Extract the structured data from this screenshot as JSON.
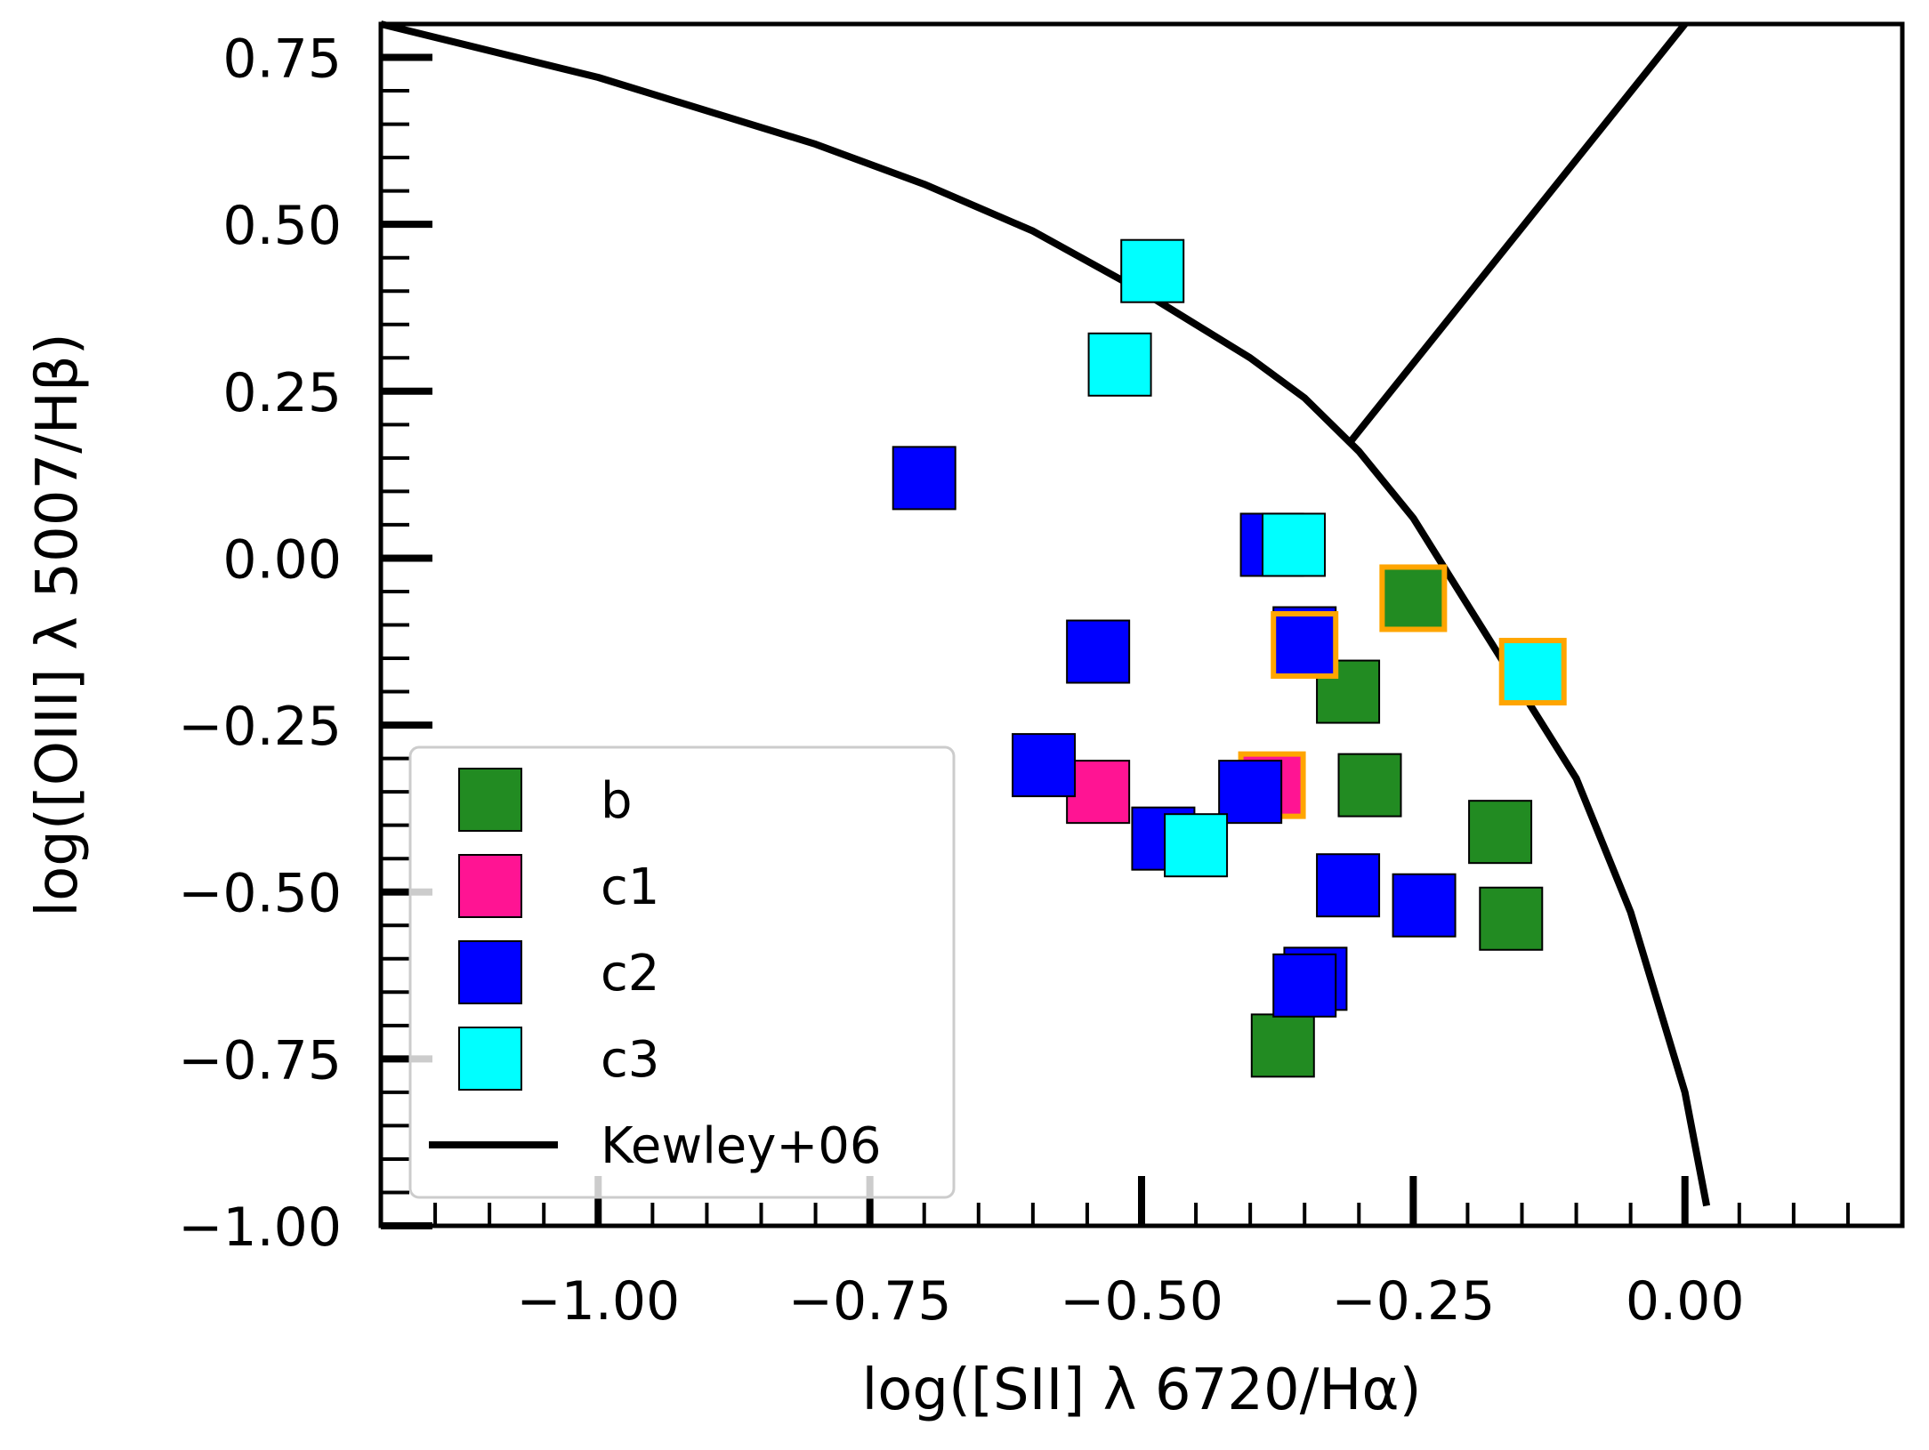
{
  "chart_data": {
    "type": "scatter",
    "title": "",
    "xlabel": "log([SII] λ 6720/Hα)",
    "ylabel": "log([OIII] λ 5007/Hβ)",
    "xlim": [
      -1.2,
      0.2
    ],
    "ylim": [
      -1.0,
      0.8
    ],
    "xticks": [
      -1.0,
      -0.75,
      -0.5,
      -0.25,
      0.0
    ],
    "xtick_labels": [
      "−1.00",
      "−0.75",
      "−0.50",
      "−0.25",
      "0.00"
    ],
    "yticks": [
      -1.0,
      -0.75,
      -0.5,
      -0.25,
      0.0,
      0.25,
      0.5,
      0.75
    ],
    "ytick_labels": [
      "−1.00",
      "−0.75",
      "−0.50",
      "−0.25",
      "0.00",
      "0.25",
      "0.50",
      "0.75"
    ],
    "legend_position": "lower-left",
    "highlight_color": "#FFA500",
    "series": [
      {
        "name": "b",
        "color": "#228B22",
        "points": [
          {
            "x": -0.25,
            "y": -0.06,
            "highlight": true
          },
          {
            "x": -0.31,
            "y": -0.2
          },
          {
            "x": -0.29,
            "y": -0.34
          },
          {
            "x": -0.17,
            "y": -0.41
          },
          {
            "x": -0.16,
            "y": -0.54
          },
          {
            "x": -0.37,
            "y": -0.73
          }
        ]
      },
      {
        "name": "c1",
        "color": "#FF1493",
        "points": [
          {
            "x": -0.54,
            "y": -0.35
          },
          {
            "x": -0.38,
            "y": -0.34,
            "highlight": true
          }
        ]
      },
      {
        "name": "c2",
        "color": "#0000FF",
        "points": [
          {
            "x": -0.7,
            "y": 0.12
          },
          {
            "x": -0.38,
            "y": 0.02
          },
          {
            "x": -0.35,
            "y": -0.12
          },
          {
            "x": -0.54,
            "y": -0.14
          },
          {
            "x": -0.35,
            "y": -0.13,
            "highlight": true
          },
          {
            "x": -0.59,
            "y": -0.31
          },
          {
            "x": -0.4,
            "y": -0.35
          },
          {
            "x": -0.48,
            "y": -0.42
          },
          {
            "x": -0.31,
            "y": -0.49
          },
          {
            "x": -0.24,
            "y": -0.52
          },
          {
            "x": -0.34,
            "y": -0.63
          },
          {
            "x": -0.35,
            "y": -0.64
          }
        ]
      },
      {
        "name": "c3",
        "color": "#00FFFF",
        "points": [
          {
            "x": -0.49,
            "y": 0.43
          },
          {
            "x": -0.52,
            "y": 0.29
          },
          {
            "x": -0.36,
            "y": 0.02
          },
          {
            "x": -0.14,
            "y": -0.17,
            "highlight": true
          },
          {
            "x": -0.45,
            "y": -0.43
          }
        ]
      }
    ],
    "lines": [
      {
        "name": "Kewley+06",
        "color": "#000000",
        "segments": [
          [
            [
              -1.2,
              0.8
            ],
            [
              -1.0,
              0.72
            ],
            [
              -0.8,
              0.62
            ],
            [
              -0.7,
              0.56
            ],
            [
              -0.6,
              0.49
            ],
            [
              -0.5,
              0.4
            ],
            [
              -0.45,
              0.35
            ],
            [
              -0.4,
              0.3
            ],
            [
              -0.35,
              0.24
            ],
            [
              -0.3,
              0.16
            ],
            [
              -0.25,
              0.06
            ],
            [
              -0.2,
              -0.07
            ],
            [
              -0.15,
              -0.2
            ],
            [
              -0.1,
              -0.33
            ],
            [
              -0.05,
              -0.53
            ],
            [
              0.0,
              -0.8
            ],
            [
              0.02,
              -0.97
            ]
          ],
          [
            [
              -0.31,
              0.17
            ],
            [
              0.0,
              0.8
            ]
          ]
        ]
      }
    ]
  }
}
